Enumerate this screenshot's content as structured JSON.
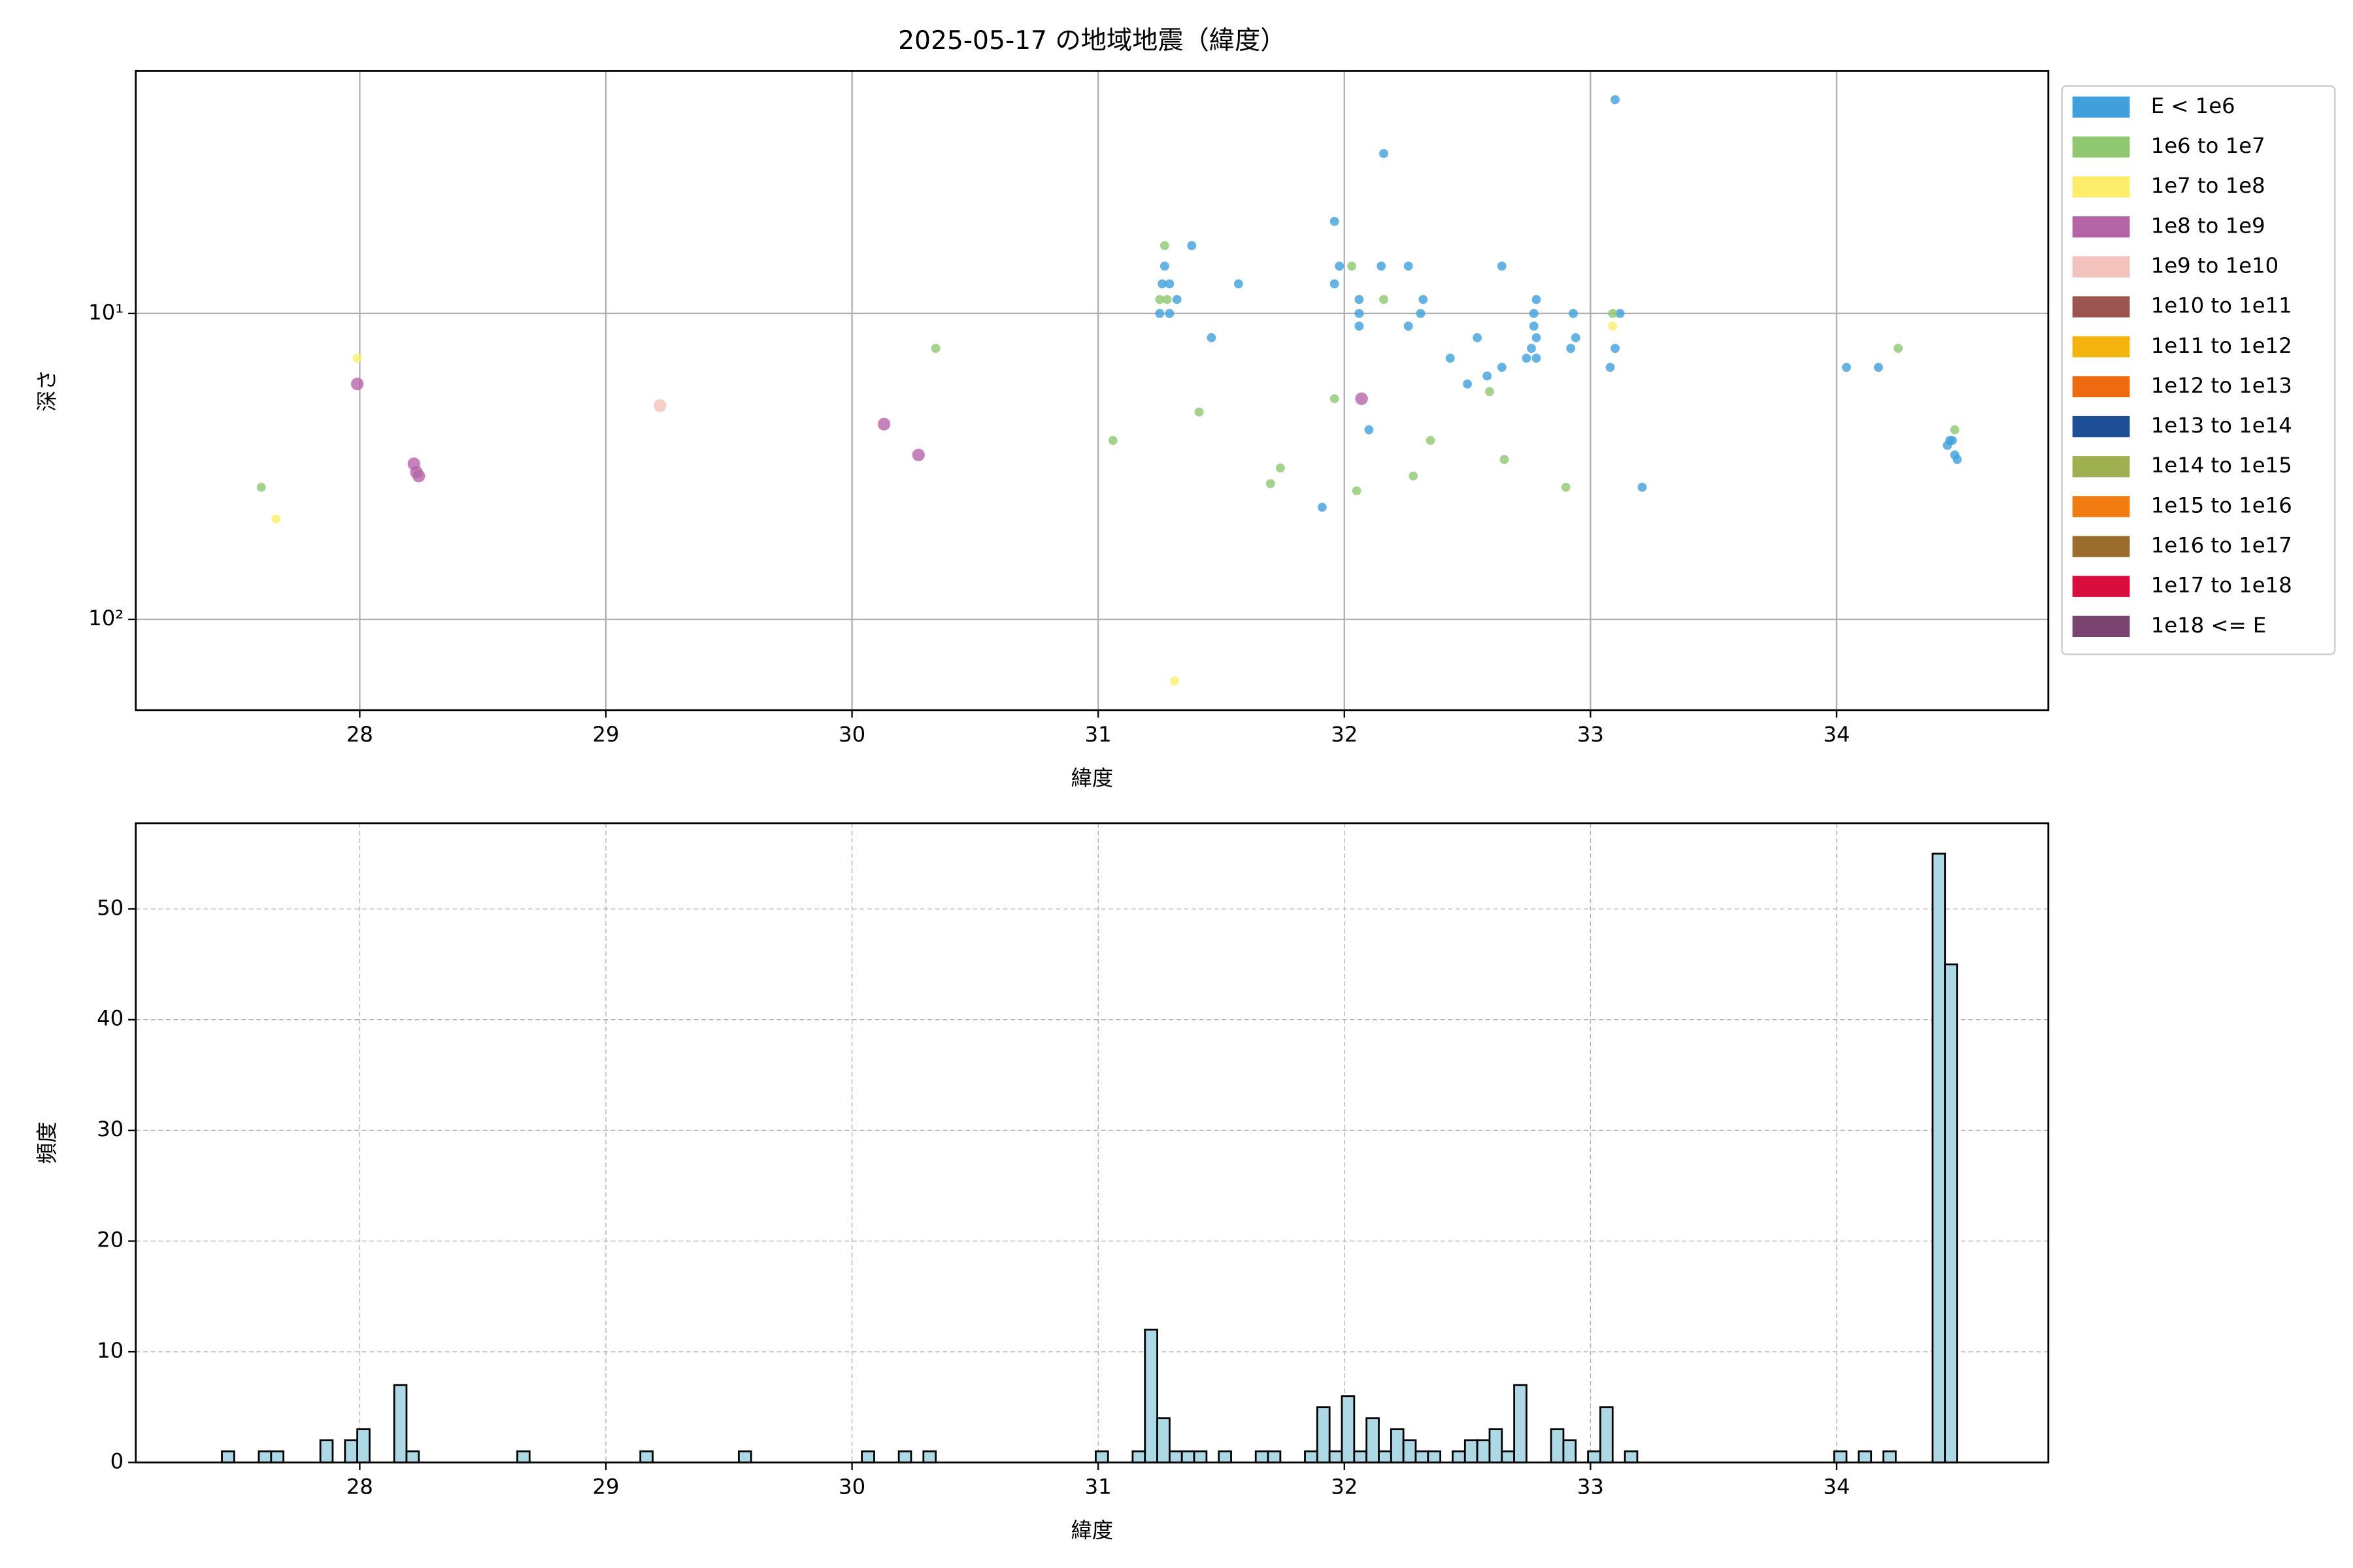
{
  "chart_data": [
    {
      "type": "scatter",
      "title": "2025-05-17 の地域地震（緯度）",
      "xlabel": "緯度",
      "ylabel": "深さ",
      "xlim": [
        27.09,
        34.86
      ],
      "xticks": [
        28,
        29,
        30,
        31,
        32,
        33,
        34
      ],
      "ylim": [
        1.61,
        198
      ],
      "yscale": "log",
      "y_inverted": true,
      "yticks": [
        {
          "value": 10,
          "label": "10¹"
        },
        {
          "value": 100,
          "label": "10²"
        }
      ],
      "grid": true,
      "grid_style": "solid",
      "legend": "outside right",
      "series": [
        {
          "name": "E < 1e6",
          "color": "#3fa0dc",
          "x": [
            33.1,
            32.16,
            31.96,
            31.98,
            32.15,
            32.26,
            32.64,
            31.38,
            31.27,
            31.26,
            31.29,
            31.57,
            31.96,
            31.32,
            31.25,
            31.29,
            32.06,
            32.32,
            32.78,
            32.06,
            32.31,
            32.93,
            33.12,
            32.77,
            32.06,
            32.26,
            32.77,
            32.54,
            32.78,
            31.46,
            32.94,
            32.76,
            32.92,
            33.1,
            32.43,
            32.74,
            32.78,
            33.08,
            34.04,
            34.17,
            32.64,
            32.58,
            32.5,
            32.1,
            33.21,
            31.91,
            34.45,
            34.47,
            34.49,
            34.48,
            34.46
          ],
          "values": [
            2.0,
            3.0,
            5.0,
            7.0,
            7.0,
            7.0,
            7.0,
            6.0,
            7.0,
            8.0,
            8.0,
            8.0,
            8.0,
            9.0,
            10,
            10,
            9,
            9,
            9,
            10,
            10,
            10,
            10,
            10,
            11,
            11,
            11,
            12,
            12,
            12,
            12,
            13,
            13,
            13,
            14,
            14,
            14,
            15,
            15,
            15,
            15,
            16,
            17,
            24,
            37,
            43,
            27,
            26,
            30,
            29,
            26
          ]
        },
        {
          "name": "1e6 to 1e7",
          "color": "#8fc870",
          "x": [
            31.27,
            32.03,
            32.16,
            31.25,
            31.28,
            33.09,
            30.34,
            31.96,
            32.59,
            31.41,
            31.06,
            32.35,
            34.48,
            31.74,
            31.7,
            32.65,
            32.28,
            32.05,
            32.9,
            34.25,
            27.6
          ],
          "values": [
            6,
            7,
            9,
            9,
            9,
            10,
            13,
            19,
            18,
            21,
            26,
            26,
            24,
            32,
            36,
            30,
            34,
            38,
            37,
            13,
            37
          ]
        },
        {
          "name": "1e7 to 1e8",
          "color": "#fded6b",
          "x": [
            27.99,
            27.66,
            33.09,
            31.31
          ],
          "values": [
            14,
            47,
            11,
            159
          ]
        },
        {
          "name": "1e8 to 1e9",
          "color": "#b565a7",
          "x": [
            27.99,
            30.13,
            30.27,
            32.07,
            28.22,
            28.23,
            28.24
          ],
          "values": [
            17,
            23,
            29,
            19,
            31,
            33,
            34
          ]
        },
        {
          "name": "1e9 to 1e10",
          "color": "#f4c2bc",
          "x": [
            29.22
          ],
          "values": [
            20
          ]
        },
        {
          "name": "1e10 to 1e11",
          "color": "#9b5450",
          "x": [],
          "values": []
        },
        {
          "name": "1e11 to 1e12",
          "color": "#f5b30f",
          "x": [],
          "values": []
        },
        {
          "name": "1e12 to 1e13",
          "color": "#ed6a11",
          "x": [],
          "values": []
        },
        {
          "name": "1e13 to 1e14",
          "color": "#1e4f96",
          "x": [],
          "values": []
        },
        {
          "name": "1e14 to 1e15",
          "color": "#9fb050",
          "x": [],
          "values": []
        },
        {
          "name": "1e15 to 1e16",
          "color": "#f07c12",
          "x": [],
          "values": []
        },
        {
          "name": "1e16 to 1e17",
          "color": "#9a6d2c",
          "x": [],
          "values": []
        },
        {
          "name": "1e17 to 1e18",
          "color": "#d90c3c",
          "x": [],
          "values": []
        },
        {
          "name": "1e18 <= E",
          "color": "#7a4470",
          "x": [],
          "values": []
        }
      ]
    },
    {
      "type": "histogram",
      "xlabel": "緯度",
      "ylabel": "頻度",
      "color": "#add8e6",
      "edgecolor": "#000000",
      "xlim": [
        27.09,
        34.86
      ],
      "xticks": [
        28,
        29,
        30,
        31,
        32,
        33,
        34
      ],
      "ylim": [
        0,
        57.75
      ],
      "yticks": [
        0,
        10,
        20,
        30,
        40,
        50
      ],
      "grid": true,
      "grid_style": "dashed",
      "bins": [
        27.44,
        27.49,
        27.54,
        27.59,
        27.64,
        27.69,
        27.74,
        27.79,
        27.84,
        27.89,
        27.94,
        27.99,
        28.04,
        28.09,
        28.14,
        28.19,
        28.24,
        28.29,
        28.34,
        28.39,
        28.44,
        28.49,
        28.54,
        28.59,
        28.64,
        28.69,
        28.74,
        28.79,
        28.84,
        28.89,
        28.94,
        28.99,
        29.04,
        29.09,
        29.14,
        29.19,
        29.24,
        29.29,
        29.34,
        29.39,
        29.44,
        29.49,
        29.54,
        29.59,
        29.64,
        29.69,
        29.74,
        29.79,
        29.84,
        29.89,
        29.94,
        29.99,
        30.04,
        30.09,
        30.14,
        30.19,
        30.24,
        30.29,
        30.34,
        30.39,
        30.44,
        30.49,
        30.54,
        30.59,
        30.64,
        30.69,
        30.74,
        30.79,
        30.84,
        30.89,
        30.94,
        30.99,
        31.04,
        31.09,
        31.14,
        31.19,
        31.24,
        31.29,
        31.34,
        31.39,
        31.44,
        31.49,
        31.54,
        31.59,
        31.64,
        31.69,
        31.74,
        31.79,
        31.84,
        31.89,
        31.94,
        31.99,
        32.04,
        32.09,
        32.14,
        32.19,
        32.24,
        32.29,
        32.34,
        32.39,
        32.44,
        32.49,
        32.54,
        32.59,
        32.64,
        32.69,
        32.74,
        32.79,
        32.84,
        32.89,
        32.94,
        32.99,
        33.04,
        33.09,
        33.14,
        33.19,
        33.24,
        33.29,
        33.34,
        33.39,
        33.44,
        33.49,
        33.54,
        33.59,
        33.64,
        33.69,
        33.74,
        33.79,
        33.84,
        33.89,
        33.94,
        33.99,
        34.04,
        34.09,
        34.14,
        34.19,
        34.24,
        34.29,
        34.34,
        34.39,
        34.44,
        34.49
      ],
      "values": [
        1,
        0,
        0,
        1,
        1,
        0,
        0,
        0,
        2,
        0,
        2,
        3,
        0,
        0,
        7,
        1,
        0,
        0,
        0,
        0,
        0,
        0,
        0,
        0,
        1,
        0,
        0,
        0,
        0,
        0,
        0,
        0,
        0,
        0,
        1,
        0,
        0,
        0,
        0,
        0,
        0,
        0,
        1,
        0,
        0,
        0,
        0,
        0,
        0,
        0,
        0,
        0,
        1,
        0,
        0,
        1,
        0,
        1,
        0,
        0,
        0,
        0,
        0,
        0,
        0,
        0,
        0,
        0,
        0,
        0,
        0,
        1,
        0,
        0,
        1,
        12,
        4,
        1,
        1,
        1,
        0,
        1,
        0,
        0,
        1,
        1,
        0,
        0,
        1,
        5,
        1,
        6,
        1,
        4,
        1,
        3,
        2,
        1,
        1,
        0,
        1,
        2,
        2,
        3,
        1,
        7,
        0,
        0,
        3,
        2,
        0,
        1,
        5,
        0,
        1,
        0,
        0,
        0,
        0,
        0,
        0,
        0,
        0,
        0,
        0,
        0,
        0,
        0,
        0,
        0,
        0,
        1,
        0,
        1,
        0,
        1,
        0,
        0,
        0,
        55,
        45
      ]
    }
  ]
}
